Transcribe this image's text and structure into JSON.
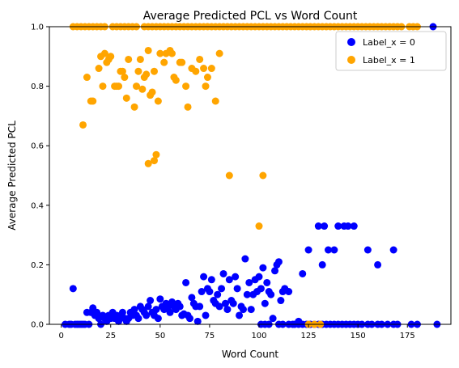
{
  "chart_data": {
    "type": "scatter",
    "title": "Average Predicted PCL vs Word Count",
    "xlabel": "Word Count",
    "ylabel": "Average Predicted PCL",
    "xlim": [
      -6,
      197
    ],
    "ylim": [
      0,
      1
    ],
    "xticks": [
      0,
      25,
      50,
      75,
      100,
      125,
      150,
      175
    ],
    "yticks": [
      0.0,
      0.2,
      0.4,
      0.6,
      0.8,
      1.0
    ],
    "xtick_labels": [
      "0",
      "25",
      "50",
      "75",
      "100",
      "125",
      "150",
      "175"
    ],
    "ytick_labels": [
      "0.0",
      "0.2",
      "0.4",
      "0.6",
      "0.8",
      "1.0"
    ],
    "grid": false,
    "legend_position": "top-right",
    "series": [
      {
        "name": "Label_x = 0",
        "color": "#0000ff",
        "points": [
          [
            2,
            0
          ],
          [
            4,
            0
          ],
          [
            5,
            0
          ],
          [
            6,
            0.12
          ],
          [
            7,
            0
          ],
          [
            8,
            0
          ],
          [
            9,
            0
          ],
          [
            10,
            0
          ],
          [
            11,
            0
          ],
          [
            12,
            0
          ],
          [
            13,
            0.04
          ],
          [
            14,
            0
          ],
          [
            15,
            0.04
          ],
          [
            16,
            0.055
          ],
          [
            17,
            0.03
          ],
          [
            18,
            0.04
          ],
          [
            19,
            0.02
          ],
          [
            20,
            0
          ],
          [
            21,
            0.03
          ],
          [
            22,
            0.02
          ],
          [
            23,
            0.01
          ],
          [
            24,
            0.03
          ],
          [
            25,
            0.02
          ],
          [
            26,
            0.04
          ],
          [
            27,
            0.02
          ],
          [
            28,
            0.03
          ],
          [
            29,
            0.01
          ],
          [
            30,
            0.03
          ],
          [
            31,
            0.04
          ],
          [
            32,
            0.02
          ],
          [
            33,
            0.01
          ],
          [
            34,
            0.02
          ],
          [
            35,
            0.04
          ],
          [
            36,
            0.03
          ],
          [
            37,
            0.05
          ],
          [
            38,
            0.03
          ],
          [
            39,
            0.02
          ],
          [
            40,
            0.06
          ],
          [
            41,
            0.05
          ],
          [
            42,
            0.04
          ],
          [
            43,
            0.03
          ],
          [
            44,
            0.06
          ],
          [
            45,
            0.08
          ],
          [
            46,
            0.04
          ],
          [
            47,
            0.03
          ],
          [
            48,
            0.05
          ],
          [
            49,
            0.02
          ],
          [
            50,
            0.085
          ],
          [
            51,
            0.06
          ],
          [
            52,
            0.05
          ],
          [
            53,
            0.07
          ],
          [
            54,
            0.06
          ],
          [
            55,
            0.04
          ],
          [
            56,
            0.075
          ],
          [
            57,
            0.06
          ],
          [
            58,
            0.05
          ],
          [
            59,
            0.07
          ],
          [
            60,
            0.06
          ],
          [
            61,
            0.03
          ],
          [
            62,
            0.035
          ],
          [
            63,
            0.14
          ],
          [
            64,
            0.03
          ],
          [
            65,
            0.02
          ],
          [
            66,
            0.09
          ],
          [
            67,
            0.07
          ],
          [
            68,
            0.06
          ],
          [
            69,
            0.01
          ],
          [
            70,
            0.06
          ],
          [
            71,
            0.11
          ],
          [
            72,
            0.16
          ],
          [
            73,
            0.03
          ],
          [
            74,
            0.12
          ],
          [
            75,
            0.11
          ],
          [
            76,
            0.15
          ],
          [
            77,
            0.08
          ],
          [
            78,
            0.07
          ],
          [
            79,
            0.1
          ],
          [
            80,
            0.06
          ],
          [
            81,
            0.12
          ],
          [
            82,
            0.17
          ],
          [
            83,
            0.07
          ],
          [
            84,
            0.05
          ],
          [
            85,
            0.15
          ],
          [
            86,
            0.08
          ],
          [
            87,
            0.07
          ],
          [
            88,
            0.16
          ],
          [
            89,
            0.12
          ],
          [
            90,
            0.03
          ],
          [
            91,
            0.06
          ],
          [
            92,
            0.05
          ],
          [
            93,
            0.22
          ],
          [
            94,
            0.1
          ],
          [
            95,
            0.14
          ],
          [
            96,
            0.05
          ],
          [
            97,
            0.1
          ],
          [
            98,
            0.15
          ],
          [
            99,
            0.11
          ],
          [
            100,
            0.16
          ],
          [
            101,
            0.12
          ],
          [
            102,
            0.19
          ],
          [
            103,
            0.07
          ],
          [
            104,
            0.14
          ],
          [
            105,
            0.11
          ],
          [
            106,
            0.1
          ],
          [
            107,
            0.02
          ],
          [
            108,
            0.18
          ],
          [
            109,
            0.2
          ],
          [
            110,
            0.21
          ],
          [
            111,
            0.08
          ],
          [
            112,
            0.11
          ],
          [
            113,
            0.12
          ],
          [
            115,
            0.11
          ],
          [
            120,
            0.01
          ],
          [
            122,
            0.17
          ],
          [
            125,
            0.25
          ],
          [
            130,
            0.33
          ],
          [
            132,
            0.2
          ],
          [
            133,
            0.33
          ],
          [
            135,
            0.25
          ],
          [
            138,
            0.25
          ],
          [
            140,
            0.33
          ],
          [
            143,
            0.33
          ],
          [
            145,
            0.33
          ],
          [
            148,
            0.33
          ],
          [
            155,
            0.25
          ],
          [
            160,
            0.2
          ],
          [
            168,
            0.25
          ],
          [
            101,
            0
          ],
          [
            103,
            0
          ],
          [
            105,
            0
          ],
          [
            110,
            0
          ],
          [
            112,
            0
          ],
          [
            115,
            0
          ],
          [
            117,
            0
          ],
          [
            118,
            0
          ],
          [
            120,
            0
          ],
          [
            122,
            0
          ],
          [
            124,
            0
          ],
          [
            126,
            0
          ],
          [
            128,
            0
          ],
          [
            130,
            0
          ],
          [
            132,
            0
          ],
          [
            134,
            0
          ],
          [
            136,
            0
          ],
          [
            138,
            0
          ],
          [
            140,
            0
          ],
          [
            142,
            0
          ],
          [
            144,
            0
          ],
          [
            146,
            0
          ],
          [
            148,
            0
          ],
          [
            150,
            0
          ],
          [
            152,
            0
          ],
          [
            155,
            0
          ],
          [
            157,
            0
          ],
          [
            160,
            0
          ],
          [
            162,
            0
          ],
          [
            165,
            0
          ],
          [
            168,
            0
          ],
          [
            170,
            0
          ],
          [
            177,
            0
          ],
          [
            180,
            0
          ],
          [
            190,
            0
          ],
          [
            188,
            1.0
          ]
        ]
      },
      {
        "name": "Label_x = 1",
        "color": "#ffa500",
        "points": [
          [
            11,
            0.67
          ],
          [
            13,
            0.83
          ],
          [
            15,
            0.75
          ],
          [
            16,
            0.75
          ],
          [
            19,
            0.86
          ],
          [
            20,
            0.9
          ],
          [
            21,
            0.8
          ],
          [
            22,
            0.91
          ],
          [
            23,
            0.88
          ],
          [
            24,
            0.89
          ],
          [
            25,
            0.9
          ],
          [
            27,
            0.8
          ],
          [
            28,
            0.8
          ],
          [
            29,
            0.8
          ],
          [
            30,
            0.85
          ],
          [
            31,
            0.85
          ],
          [
            32,
            0.83
          ],
          [
            33,
            0.76
          ],
          [
            34,
            0.89
          ],
          [
            37,
            0.73
          ],
          [
            38,
            0.8
          ],
          [
            39,
            0.85
          ],
          [
            40,
            0.89
          ],
          [
            41,
            0.79
          ],
          [
            42,
            0.83
          ],
          [
            43,
            0.84
          ],
          [
            44,
            0.92
          ],
          [
            45,
            0.77
          ],
          [
            46,
            0.78
          ],
          [
            47,
            0.85
          ],
          [
            48,
            0.57
          ],
          [
            49,
            0.75
          ],
          [
            50,
            0.91
          ],
          [
            52,
            0.88
          ],
          [
            53,
            0.91
          ],
          [
            55,
            0.92
          ],
          [
            56,
            0.91
          ],
          [
            57,
            0.83
          ],
          [
            58,
            0.82
          ],
          [
            60,
            0.88
          ],
          [
            61,
            0.88
          ],
          [
            63,
            0.8
          ],
          [
            64,
            0.73
          ],
          [
            66,
            0.86
          ],
          [
            68,
            0.85
          ],
          [
            70,
            0.89
          ],
          [
            72,
            0.86
          ],
          [
            73,
            0.8
          ],
          [
            74,
            0.83
          ],
          [
            76,
            0.86
          ],
          [
            78,
            0.75
          ],
          [
            80,
            0.91
          ],
          [
            44,
            0.54
          ],
          [
            47,
            0.55
          ],
          [
            85,
            0.5
          ],
          [
            102,
            0.5
          ],
          [
            100,
            0.33
          ],
          [
            125,
            0
          ],
          [
            128,
            0
          ],
          [
            131,
            0
          ],
          [
            6,
            1
          ],
          [
            8,
            1
          ],
          [
            10,
            1
          ],
          [
            12,
            1
          ],
          [
            14,
            1
          ],
          [
            16,
            1
          ],
          [
            18,
            1
          ],
          [
            20,
            1
          ],
          [
            22,
            1
          ],
          [
            26,
            1
          ],
          [
            28,
            1
          ],
          [
            30,
            1
          ],
          [
            32,
            1
          ],
          [
            34,
            1
          ],
          [
            36,
            1
          ],
          [
            38,
            1
          ],
          [
            42,
            1
          ],
          [
            44,
            1
          ],
          [
            46,
            1
          ],
          [
            48,
            1
          ],
          [
            50,
            1
          ],
          [
            52,
            1
          ],
          [
            54,
            1
          ],
          [
            56,
            1
          ],
          [
            58,
            1
          ],
          [
            60,
            1
          ],
          [
            62,
            1
          ],
          [
            64,
            1
          ],
          [
            66,
            1
          ],
          [
            68,
            1
          ],
          [
            70,
            1
          ],
          [
            72,
            1
          ],
          [
            74,
            1
          ],
          [
            76,
            1
          ],
          [
            78,
            1
          ],
          [
            80,
            1
          ],
          [
            82,
            1
          ],
          [
            84,
            1
          ],
          [
            86,
            1
          ],
          [
            88,
            1
          ],
          [
            90,
            1
          ],
          [
            92,
            1
          ],
          [
            94,
            1
          ],
          [
            96,
            1
          ],
          [
            98,
            1
          ],
          [
            100,
            1
          ],
          [
            102,
            1
          ],
          [
            104,
            1
          ],
          [
            106,
            1
          ],
          [
            108,
            1
          ],
          [
            110,
            1
          ],
          [
            112,
            1
          ],
          [
            114,
            1
          ],
          [
            116,
            1
          ],
          [
            118,
            1
          ],
          [
            120,
            1
          ],
          [
            122,
            1
          ],
          [
            124,
            1
          ],
          [
            126,
            1
          ],
          [
            128,
            1
          ],
          [
            130,
            1
          ],
          [
            132,
            1
          ],
          [
            134,
            1
          ],
          [
            136,
            1
          ],
          [
            138,
            1
          ],
          [
            140,
            1
          ],
          [
            142,
            1
          ],
          [
            144,
            1
          ],
          [
            146,
            1
          ],
          [
            148,
            1
          ],
          [
            150,
            1
          ],
          [
            152,
            1
          ],
          [
            154,
            1
          ],
          [
            156,
            1
          ],
          [
            158,
            1
          ],
          [
            160,
            1
          ],
          [
            162,
            1
          ],
          [
            164,
            1
          ],
          [
            166,
            1
          ],
          [
            168,
            1
          ],
          [
            170,
            1
          ],
          [
            172,
            1
          ],
          [
            176,
            1
          ],
          [
            178,
            1
          ],
          [
            180,
            1
          ]
        ]
      }
    ]
  }
}
